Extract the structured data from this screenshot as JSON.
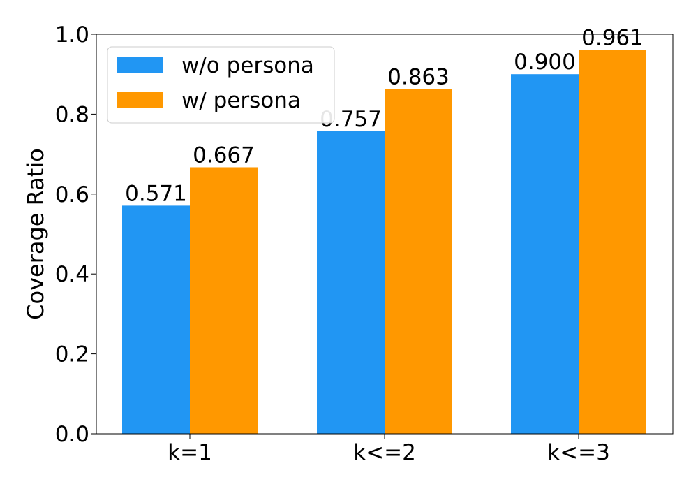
{
  "chart_data": {
    "type": "bar",
    "title": "",
    "xlabel": "",
    "ylabel": "Coverage Ratio",
    "categories": [
      "k=1",
      "k<=2",
      "k<=3"
    ],
    "series": [
      {
        "name": "w/o persona",
        "values": [
          0.571,
          0.757,
          0.9
        ],
        "labels": [
          "0.571",
          "0.757",
          "0.900"
        ],
        "color": "#2196F3"
      },
      {
        "name": "w/ persona",
        "values": [
          0.667,
          0.863,
          0.961
        ],
        "labels": [
          "0.667",
          "0.863",
          "0.961"
        ],
        "color": "#FF9800"
      }
    ],
    "ylim": [
      0.0,
      1.0
    ],
    "yticks": [
      0.0,
      0.2,
      0.4,
      0.6,
      0.8,
      1.0
    ],
    "ytick_labels": [
      "0.0",
      "0.2",
      "0.4",
      "0.6",
      "0.8",
      "1.0"
    ],
    "grid": false,
    "legend_position": "top-left"
  }
}
